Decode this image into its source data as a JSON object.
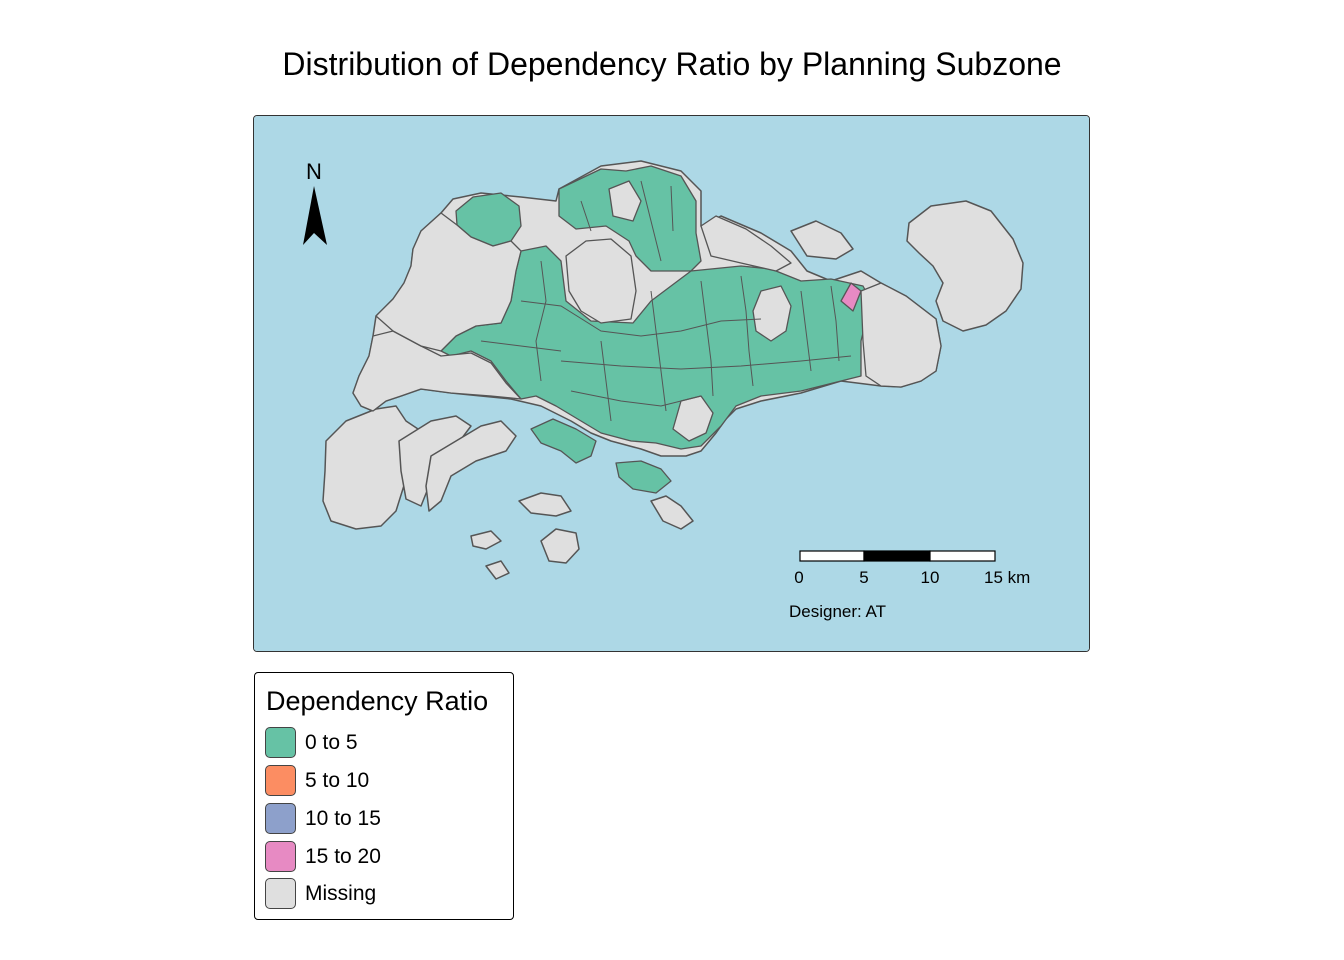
{
  "title": "Distribution of Dependency Ratio by Planning Subzone",
  "map": {
    "colors": {
      "sea": "#ADD8E6",
      "border": "#555555",
      "zero_to_five": "#66C2A5",
      "fifteen_to_twenty": "#E78AC3",
      "missing": "#DFDFDF"
    },
    "compass_label": "N",
    "scale_bar": {
      "ticks": [
        "0",
        "5",
        "10",
        "15 km"
      ]
    },
    "credit": "Designer: AT"
  },
  "legend": {
    "title": "Dependency Ratio",
    "items": [
      {
        "label": "0 to 5",
        "color": "#66C2A5"
      },
      {
        "label": "5 to 10",
        "color": "#FC8D62"
      },
      {
        "label": "10 to 15",
        "color": "#8DA0CB"
      },
      {
        "label": "15 to 20",
        "color": "#E78AC3"
      },
      {
        "label": "Missing",
        "color": "#DFDFDF"
      }
    ]
  }
}
